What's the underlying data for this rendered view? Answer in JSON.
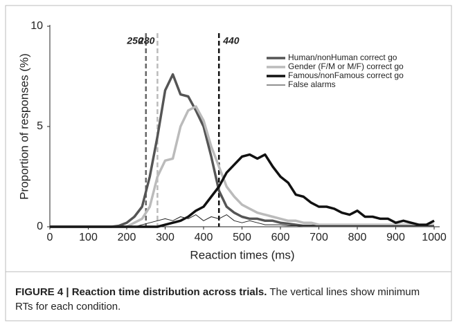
{
  "chart_data": {
    "type": "line",
    "ylabel": "Proportion of responses (%)",
    "xlabel": "Reaction times (ms)",
    "x": [
      0,
      20,
      40,
      60,
      80,
      100,
      120,
      140,
      160,
      180,
      200,
      220,
      240,
      260,
      280,
      300,
      320,
      340,
      360,
      380,
      400,
      420,
      440,
      460,
      480,
      500,
      520,
      540,
      560,
      580,
      600,
      620,
      640,
      660,
      680,
      700,
      720,
      740,
      760,
      780,
      800,
      820,
      840,
      860,
      880,
      900,
      920,
      940,
      960,
      980,
      1000
    ],
    "xlim": [
      0,
      1000
    ],
    "xticks": [
      0,
      100,
      200,
      300,
      400,
      500,
      600,
      700,
      800,
      900,
      1000
    ],
    "ylim": [
      0,
      10
    ],
    "yticks": [
      0,
      5,
      10
    ],
    "series": [
      {
        "name": "Human/nonHuman correct go",
        "color": "#555555",
        "width": 3.5,
        "values": [
          0,
          0,
          0,
          0,
          0,
          0,
          0,
          0,
          0,
          0.05,
          0.2,
          0.5,
          1.0,
          2.5,
          4.5,
          6.8,
          7.6,
          6.6,
          6.5,
          5.8,
          5.0,
          3.5,
          1.8,
          1.0,
          0.7,
          0.5,
          0.4,
          0.4,
          0.3,
          0.3,
          0.2,
          0.15,
          0.1,
          0.05,
          0.05,
          0.05,
          0.05,
          0.05,
          0.05,
          0.05,
          0.05,
          0.05,
          0.05,
          0.05,
          0.05,
          0.05,
          0.05,
          0.05,
          0.05,
          0.05,
          0.05
        ]
      },
      {
        "name": "Gender (F/M or M/F) correct go",
        "color": "#bbbbbb",
        "width": 3.5,
        "values": [
          0,
          0,
          0,
          0,
          0,
          0,
          0,
          0,
          0,
          0,
          0,
          0.2,
          0.4,
          1.0,
          2.5,
          3.3,
          3.4,
          5.0,
          5.8,
          6.0,
          5.3,
          4.0,
          3.0,
          2.0,
          1.5,
          1.1,
          0.9,
          0.7,
          0.6,
          0.5,
          0.4,
          0.3,
          0.3,
          0.2,
          0.2,
          0.1,
          0.1,
          0.1,
          0.1,
          0.1,
          0.1,
          0.1,
          0.1,
          0.1,
          0.1,
          0.1,
          0.1,
          0.1,
          0.1,
          0.1,
          0.1
        ]
      },
      {
        "name": "Famous/nonFamous correct go",
        "color": "#111111",
        "width": 3.5,
        "values": [
          0,
          0,
          0,
          0,
          0,
          0,
          0,
          0,
          0,
          0,
          0,
          0,
          0,
          0,
          0,
          0.1,
          0.2,
          0.3,
          0.5,
          0.8,
          1.0,
          1.5,
          2.0,
          2.7,
          3.1,
          3.5,
          3.6,
          3.4,
          3.6,
          3.0,
          2.5,
          2.2,
          1.6,
          1.5,
          1.2,
          1.0,
          1.0,
          0.9,
          0.7,
          0.6,
          0.8,
          0.5,
          0.5,
          0.4,
          0.4,
          0.2,
          0.3,
          0.2,
          0.1,
          0.1,
          0.3
        ]
      },
      {
        "name": "False alarms",
        "color": "#222222",
        "width": 1,
        "values": [
          0,
          0,
          0,
          0,
          0,
          0,
          0,
          0,
          0,
          0,
          0,
          0,
          0.1,
          0.2,
          0.3,
          0.4,
          0.3,
          0.5,
          0.4,
          0.6,
          0.3,
          0.5,
          0.4,
          0.6,
          0.3,
          0.2,
          0.3,
          0.2,
          0.1,
          0.1,
          0.1,
          0.05,
          0.05,
          0.05,
          0.05,
          0.05,
          0.05,
          0.05,
          0.05,
          0.05,
          0.05,
          0.05,
          0.05,
          0.05,
          0.05,
          0.05,
          0.05,
          0.05,
          0.05,
          0.05,
          0.05
        ]
      }
    ],
    "vlines": [
      {
        "value": 250,
        "color": "#666666"
      },
      {
        "value": 280,
        "color": "#bbbbbb"
      },
      {
        "value": 440,
        "color": "#111111"
      }
    ],
    "caption": {
      "label": "FIGURE 4 | Reaction time distribution across trials.",
      "text": "The vertical lines show minimum RTs for each condition."
    }
  }
}
